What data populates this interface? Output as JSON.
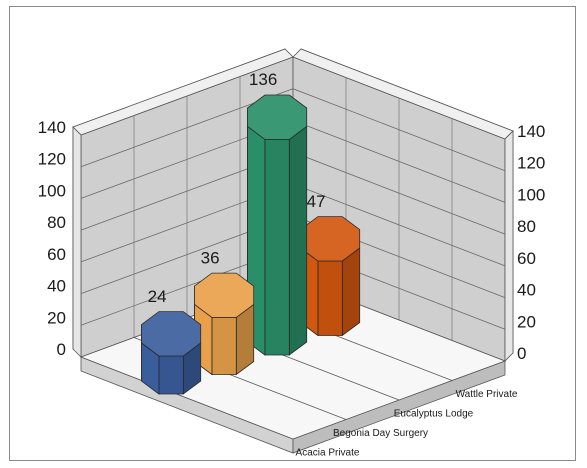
{
  "chart_data": {
    "type": "bar",
    "subtype": "3d-cylinder-octagonal",
    "title": "",
    "xlabel": "",
    "ylabel": "",
    "ylim": [
      0,
      140
    ],
    "yticks": [
      "0",
      "20",
      "40",
      "60",
      "80",
      "100",
      "120",
      "140"
    ],
    "grid": true,
    "legend": "none",
    "categories": [
      "Acacia Private",
      "Begonia Day Surgery",
      "Eucalyptus Lodge",
      "Wattle Private"
    ],
    "values": [
      24,
      36,
      136,
      47
    ],
    "data_labels": [
      "24",
      "36",
      "136",
      "47"
    ],
    "colors": [
      "#3a5e9c",
      "#e8a04a",
      "#2a8f68",
      "#d2570f"
    ],
    "wall_color": "#c4c4c4",
    "floor_color": "#f7f7f7"
  }
}
